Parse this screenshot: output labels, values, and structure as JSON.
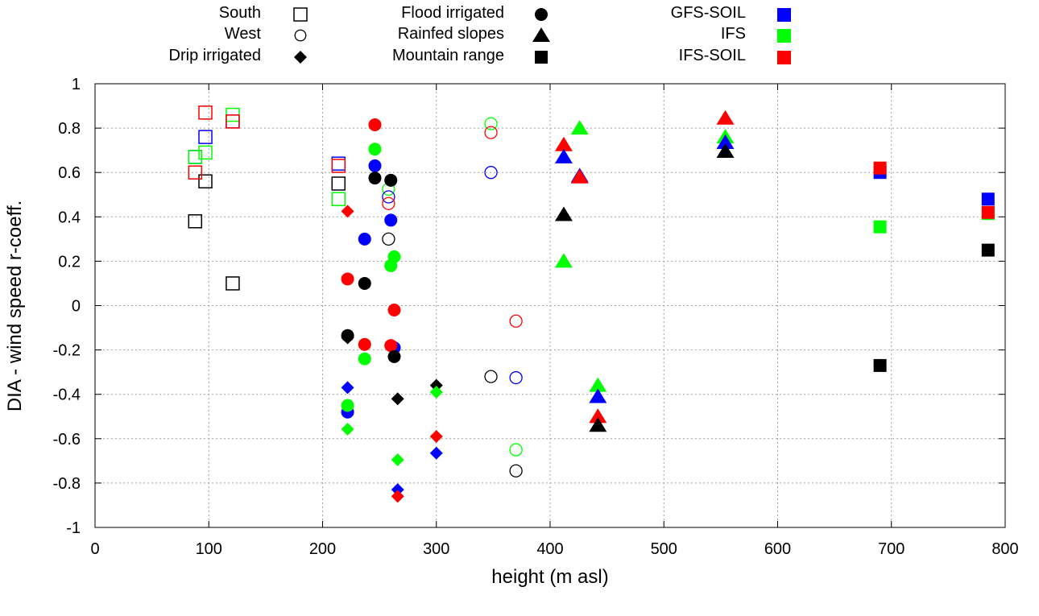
{
  "chart_data": {
    "type": "scatter",
    "xlabel": "height (m asl)",
    "ylabel": "DIA - wind speed r-coeff.",
    "xlim": [
      0,
      800
    ],
    "ylim": [
      -1,
      1
    ],
    "xticks": [
      "0",
      "100",
      "200",
      "300",
      "400",
      "500",
      "600",
      "700",
      "800"
    ],
    "yticks": [
      "1",
      "0.8",
      "0.6",
      "0.4",
      "0.2",
      "0",
      "-0.2",
      "-0.4",
      "-0.6",
      "-0.8",
      "-1"
    ],
    "grid": true,
    "legend_position": "top",
    "colors": {
      "black": "#000000",
      "GFS-SOIL": "#0000ff",
      "IFS": "#00ff00",
      "IFS-SOIL": "#ff0000"
    },
    "legend": {
      "regions": [
        {
          "label": "South",
          "marker": "open-square"
        },
        {
          "label": "West",
          "marker": "open-circle"
        },
        {
          "label": "Drip irrigated",
          "marker": "diamond"
        },
        {
          "label": "Flood irrigated",
          "marker": "circle"
        },
        {
          "label": "Rainfed slopes",
          "marker": "triangle"
        },
        {
          "label": "Mountain range",
          "marker": "square"
        }
      ],
      "models": [
        {
          "label": "GFS-SOIL",
          "color": "#0000ff"
        },
        {
          "label": "IFS",
          "color": "#00ff00"
        },
        {
          "label": "IFS-SOIL",
          "color": "#ff0000"
        }
      ]
    },
    "points": [
      {
        "r": "South",
        "m": "black",
        "x": 88,
        "y": 0.38
      },
      {
        "r": "South",
        "m": "black",
        "x": 97,
        "y": 0.56
      },
      {
        "r": "South",
        "m": "black",
        "x": 121,
        "y": 0.1
      },
      {
        "r": "South",
        "m": "black",
        "x": 214,
        "y": 0.55
      },
      {
        "r": "South",
        "m": "GFS-SOIL",
        "x": 97,
        "y": 0.76
      },
      {
        "r": "South",
        "m": "GFS-SOIL",
        "x": 121,
        "y": 0.83
      },
      {
        "r": "South",
        "m": "GFS-SOIL",
        "x": 88,
        "y": 0.67
      },
      {
        "r": "South",
        "m": "GFS-SOIL",
        "x": 214,
        "y": 0.64
      },
      {
        "r": "South",
        "m": "IFS",
        "x": 88,
        "y": 0.67
      },
      {
        "r": "South",
        "m": "IFS",
        "x": 97,
        "y": 0.69
      },
      {
        "r": "South",
        "m": "IFS",
        "x": 121,
        "y": 0.86
      },
      {
        "r": "South",
        "m": "IFS",
        "x": 214,
        "y": 0.48
      },
      {
        "r": "South",
        "m": "IFS-SOIL",
        "x": 97,
        "y": 0.87
      },
      {
        "r": "South",
        "m": "IFS-SOIL",
        "x": 88,
        "y": 0.6
      },
      {
        "r": "South",
        "m": "IFS-SOIL",
        "x": 121,
        "y": 0.83
      },
      {
        "r": "South",
        "m": "IFS-SOIL",
        "x": 214,
        "y": 0.63
      },
      {
        "r": "West",
        "m": "black",
        "x": 258,
        "y": 0.3
      },
      {
        "r": "West",
        "m": "black",
        "x": 348,
        "y": -0.32
      },
      {
        "r": "West",
        "m": "black",
        "x": 370,
        "y": -0.745
      },
      {
        "r": "West",
        "m": "IFS",
        "x": 258,
        "y": 0.525
      },
      {
        "r": "West",
        "m": "IFS",
        "x": 348,
        "y": 0.82
      },
      {
        "r": "West",
        "m": "IFS",
        "x": 370,
        "y": -0.65
      },
      {
        "r": "West",
        "m": "GFS-SOIL",
        "x": 258,
        "y": 0.49
      },
      {
        "r": "West",
        "m": "GFS-SOIL",
        "x": 348,
        "y": 0.6
      },
      {
        "r": "West",
        "m": "GFS-SOIL",
        "x": 370,
        "y": -0.325
      },
      {
        "r": "West",
        "m": "IFS-SOIL",
        "x": 258,
        "y": 0.46
      },
      {
        "r": "West",
        "m": "IFS-SOIL",
        "x": 348,
        "y": 0.78
      },
      {
        "r": "West",
        "m": "IFS-SOIL",
        "x": 370,
        "y": -0.07
      },
      {
        "r": "Flood irrigated",
        "m": "IFS-SOIL",
        "x": 246,
        "y": 0.815
      },
      {
        "r": "Flood irrigated",
        "m": "IFS",
        "x": 246,
        "y": 0.705
      },
      {
        "r": "Flood irrigated",
        "m": "GFS-SOIL",
        "x": 246,
        "y": 0.63
      },
      {
        "r": "Flood irrigated",
        "m": "black",
        "x": 246,
        "y": 0.575
      },
      {
        "r": "Flood irrigated",
        "m": "black",
        "x": 260,
        "y": 0.565
      },
      {
        "r": "Flood irrigated",
        "m": "GFS-SOIL",
        "x": 260,
        "y": 0.385
      },
      {
        "r": "Flood irrigated",
        "m": "GFS-SOIL",
        "x": 237,
        "y": 0.3
      },
      {
        "r": "Flood irrigated",
        "m": "IFS",
        "x": 263,
        "y": 0.22
      },
      {
        "r": "Flood irrigated",
        "m": "IFS",
        "x": 260,
        "y": 0.18
      },
      {
        "r": "Flood irrigated",
        "m": "IFS-SOIL",
        "x": 222,
        "y": 0.12
      },
      {
        "r": "Flood irrigated",
        "m": "black",
        "x": 237,
        "y": 0.1
      },
      {
        "r": "Flood irrigated",
        "m": "IFS-SOIL",
        "x": 263,
        "y": -0.02
      },
      {
        "r": "Flood irrigated",
        "m": "black",
        "x": 222,
        "y": -0.135
      },
      {
        "r": "Flood irrigated",
        "m": "IFS-SOIL",
        "x": 237,
        "y": -0.175
      },
      {
        "r": "Flood irrigated",
        "m": "GFS-SOIL",
        "x": 263,
        "y": -0.19
      },
      {
        "r": "Flood irrigated",
        "m": "IFS-SOIL",
        "x": 260,
        "y": -0.18
      },
      {
        "r": "Flood irrigated",
        "m": "black",
        "x": 263,
        "y": -0.23
      },
      {
        "r": "Flood irrigated",
        "m": "IFS",
        "x": 237,
        "y": -0.24
      },
      {
        "r": "Flood irrigated",
        "m": "GFS-SOIL",
        "x": 222,
        "y": -0.48
      },
      {
        "r": "Flood irrigated",
        "m": "IFS",
        "x": 222,
        "y": -0.45
      },
      {
        "r": "Drip irrigated",
        "m": "IFS-SOIL",
        "x": 222,
        "y": 0.425
      },
      {
        "r": "Drip irrigated",
        "m": "black",
        "x": 222,
        "y": -0.145
      },
      {
        "r": "Drip irrigated",
        "m": "GFS-SOIL",
        "x": 222,
        "y": -0.37
      },
      {
        "r": "Drip irrigated",
        "m": "IFS",
        "x": 222,
        "y": -0.557
      },
      {
        "r": "Drip irrigated",
        "m": "black",
        "x": 266,
        "y": -0.42
      },
      {
        "r": "Drip irrigated",
        "m": "IFS",
        "x": 266,
        "y": -0.695
      },
      {
        "r": "Drip irrigated",
        "m": "GFS-SOIL",
        "x": 266,
        "y": -0.83
      },
      {
        "r": "Drip irrigated",
        "m": "IFS-SOIL",
        "x": 266,
        "y": -0.86
      },
      {
        "r": "Drip irrigated",
        "m": "black",
        "x": 300,
        "y": -0.36
      },
      {
        "r": "Drip irrigated",
        "m": "IFS",
        "x": 300,
        "y": -0.39
      },
      {
        "r": "Drip irrigated",
        "m": "IFS-SOIL",
        "x": 300,
        "y": -0.59
      },
      {
        "r": "Drip irrigated",
        "m": "GFS-SOIL",
        "x": 300,
        "y": -0.665
      },
      {
        "r": "Rainfed slopes",
        "m": "IFS",
        "x": 426,
        "y": 0.8
      },
      {
        "r": "Rainfed slopes",
        "m": "IFS-SOIL",
        "x": 412,
        "y": 0.725
      },
      {
        "r": "Rainfed slopes",
        "m": "GFS-SOIL",
        "x": 412,
        "y": 0.67
      },
      {
        "r": "Rainfed slopes",
        "m": "GFS-SOIL",
        "x": 426,
        "y": 0.585
      },
      {
        "r": "Rainfed slopes",
        "m": "IFS-SOIL",
        "x": 426,
        "y": 0.58
      },
      {
        "r": "Rainfed slopes",
        "m": "black",
        "x": 412,
        "y": 0.41
      },
      {
        "r": "Rainfed slopes",
        "m": "IFS",
        "x": 412,
        "y": 0.2
      },
      {
        "r": "Rainfed slopes",
        "m": "IFS",
        "x": 442,
        "y": -0.36
      },
      {
        "r": "Rainfed slopes",
        "m": "GFS-SOIL",
        "x": 442,
        "y": -0.41
      },
      {
        "r": "Rainfed slopes",
        "m": "IFS-SOIL",
        "x": 442,
        "y": -0.5
      },
      {
        "r": "Rainfed slopes",
        "m": "black",
        "x": 442,
        "y": -0.54
      },
      {
        "r": "Rainfed slopes",
        "m": "IFS-SOIL",
        "x": 554,
        "y": 0.845
      },
      {
        "r": "Rainfed slopes",
        "m": "IFS",
        "x": 554,
        "y": 0.76
      },
      {
        "r": "Rainfed slopes",
        "m": "GFS-SOIL",
        "x": 554,
        "y": 0.735
      },
      {
        "r": "Rainfed slopes",
        "m": "black",
        "x": 554,
        "y": 0.695
      },
      {
        "r": "Mountain range",
        "m": "GFS-SOIL",
        "x": 690,
        "y": 0.6
      },
      {
        "r": "Mountain range",
        "m": "IFS-SOIL",
        "x": 690,
        "y": 0.62
      },
      {
        "r": "Mountain range",
        "m": "IFS",
        "x": 690,
        "y": 0.355
      },
      {
        "r": "Mountain range",
        "m": "black",
        "x": 690,
        "y": -0.27
      },
      {
        "r": "Mountain range",
        "m": "GFS-SOIL",
        "x": 785,
        "y": 0.48
      },
      {
        "r": "Mountain range",
        "m": "IFS",
        "x": 785,
        "y": 0.415
      },
      {
        "r": "Mountain range",
        "m": "IFS-SOIL",
        "x": 785,
        "y": 0.42
      },
      {
        "r": "Mountain range",
        "m": "black",
        "x": 785,
        "y": 0.25
      }
    ]
  }
}
